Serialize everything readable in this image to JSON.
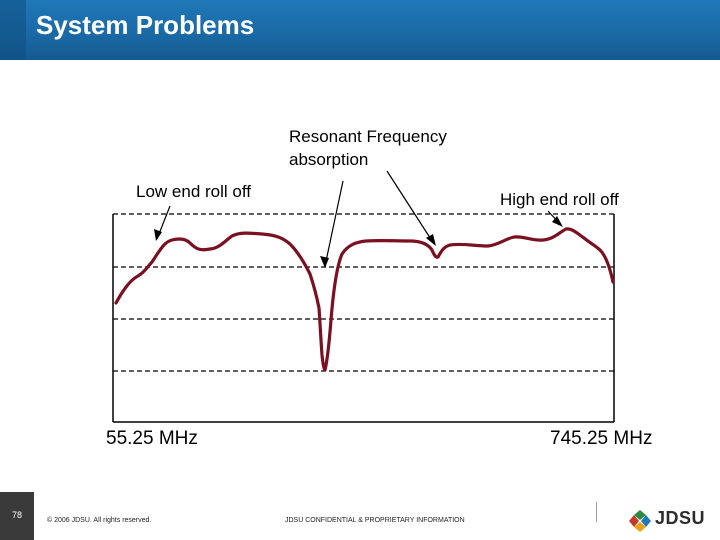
{
  "slide": {
    "title": "System Problems",
    "page_number": "78",
    "copyright": "© 2006 JDSU. All rights reserved.",
    "confidential": "JDSU CONFIDENTIAL & PROPRIETARY INFORMATION",
    "logo_text": "JDSU"
  },
  "diagram": {
    "annotations": {
      "resonant_line1": "Resonant Frequency",
      "resonant_line2": "absorption",
      "low_roll": "Low end roll off",
      "high_roll": "High end roll off"
    },
    "frequency_low": "55.25 MHz",
    "frequency_high": "745.25 MHz",
    "colors": {
      "trace": "#7a1020",
      "header": "#1f78b8",
      "gridline": "#000000"
    }
  }
}
